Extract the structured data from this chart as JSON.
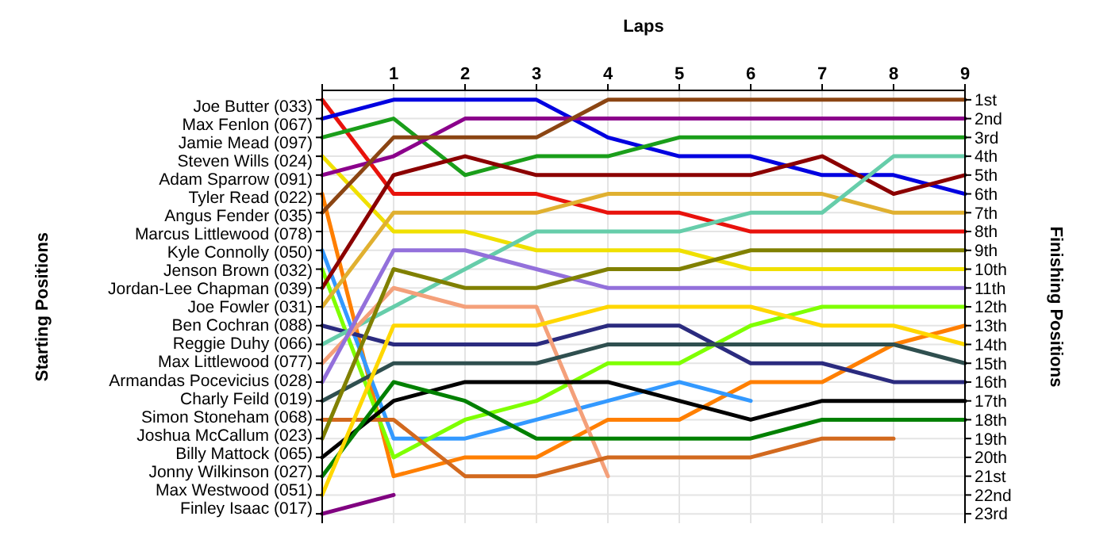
{
  "chart_data": {
    "type": "line",
    "xlabel": "Laps",
    "ylabel": "Finishing Positions",
    "x": [
      0,
      1,
      2,
      3,
      4,
      5,
      6,
      7,
      8,
      9
    ],
    "xlim": [
      0,
      9
    ],
    "xticks": [
      {
        "value": 0,
        "label": null
      },
      1,
      2,
      3,
      4,
      5,
      6,
      7,
      8,
      9
    ],
    "ylim": [
      23.5,
      0.5
    ],
    "annotations": [
      "Starting Positions",
      "Joe Butter (033)",
      "Max Fenlon (067)",
      "Jamie Mead (097)",
      "Steven Wills (024)",
      "Adam Sparrow (091)",
      "Tyler Read (022)",
      "Angus Fender (035)",
      "Marcus Littlewood (078)",
      "Kyle Connolly (050)",
      "Jenson Brown (032)",
      "Jordan-Lee Chapman (039)",
      "Joe Fowler (031)",
      "Ben Cochran (088)",
      "Reggie Duhy (066)",
      "Max Littlewood (077)",
      "Armandas Pocevicius (028)",
      "Charly Feild (019)",
      "Simon Stoneham (068)",
      "Joshua McCallum (023)",
      "Billy Mattock (065)",
      "Jonny Wilkinson (027)",
      "Max Westwood (051)",
      "Finley Isaac (017)"
    ],
    "yticks": [
      {
        "value": 1,
        "label": "1st"
      },
      {
        "value": 2,
        "label": "2nd"
      },
      {
        "value": 3,
        "label": "3rd"
      },
      {
        "value": 4,
        "label": "4th"
      },
      {
        "value": 5,
        "label": "5th"
      },
      {
        "value": 6,
        "label": "6th"
      },
      {
        "value": 7,
        "label": "7th"
      },
      {
        "value": 8,
        "label": "8th"
      },
      {
        "value": 9,
        "label": "9th"
      },
      {
        "value": 10,
        "label": "10th"
      },
      {
        "value": 11,
        "label": "11th"
      },
      {
        "value": 12,
        "label": "12th"
      },
      {
        "value": 13,
        "label": "13th"
      },
      {
        "value": 14,
        "label": "14th"
      },
      {
        "value": 15,
        "label": "15th"
      },
      {
        "value": 16,
        "label": "16th"
      },
      {
        "value": 17,
        "label": "17th"
      },
      {
        "value": 18,
        "label": "18th"
      },
      {
        "value": 19,
        "label": "19th"
      },
      {
        "value": 20,
        "label": "20th"
      },
      {
        "value": 21,
        "label": "21st"
      },
      {
        "value": 22,
        "label": "22nd"
      },
      {
        "value": 23,
        "label": "23rd"
      }
    ],
    "grid": true,
    "line_style": "solid",
    "marker": "none",
    "series": [
      {
        "color": "#e8120c",
        "values": [
          1,
          6,
          6,
          6,
          7,
          7,
          8,
          8,
          8,
          8
        ]
      },
      {
        "color": "#0000e0",
        "values": [
          2,
          1,
          1,
          1,
          3,
          4,
          4,
          5,
          5,
          6
        ]
      },
      {
        "color": "#1a9e1a",
        "values": [
          3,
          2,
          5,
          4,
          4,
          3,
          3,
          3,
          3,
          3
        ]
      },
      {
        "color": "#f0e000",
        "values": [
          4,
          8,
          8,
          9,
          9,
          9,
          10,
          10,
          10,
          10
        ]
      },
      {
        "color": "#8b008b",
        "values": [
          5,
          4,
          2,
          2,
          2,
          2,
          2,
          2,
          2,
          2
        ]
      },
      {
        "color": "#ff7f00",
        "values": [
          6,
          21,
          20,
          20,
          18,
          18,
          16,
          16,
          14,
          13
        ]
      },
      {
        "color": "#8b4513",
        "values": [
          7,
          3,
          3,
          3,
          1,
          1,
          1,
          1,
          1,
          1
        ]
      },
      {
        "color": "#3399ff",
        "values": [
          9,
          19,
          19,
          18,
          17,
          16,
          17,
          null,
          null,
          null
        ]
      },
      {
        "color": "#7fff00",
        "values": [
          10,
          20,
          18,
          17,
          15,
          15,
          13,
          12,
          12,
          12
        ]
      },
      {
        "color": "#8b0000",
        "values": [
          11,
          5,
          4,
          5,
          5,
          5,
          5,
          4,
          6,
          5
        ]
      },
      {
        "color": "#e0b030",
        "values": [
          12,
          7,
          7,
          7,
          6,
          6,
          6,
          6,
          7,
          7
        ]
      },
      {
        "color": "#2b2b7f",
        "values": [
          13,
          14,
          14,
          14,
          13,
          13,
          15,
          15,
          16,
          16
        ]
      },
      {
        "color": "#66cdaa",
        "values": [
          14,
          12,
          10,
          8,
          8,
          8,
          7,
          7,
          4,
          4
        ]
      },
      {
        "color": "#f4a07a",
        "values": [
          15,
          11,
          12,
          12,
          21,
          null,
          null,
          null,
          null,
          null
        ]
      },
      {
        "color": "#9370db",
        "values": [
          16,
          9,
          9,
          10,
          11,
          11,
          11,
          11,
          11,
          11
        ]
      },
      {
        "color": "#2f4f4f",
        "values": [
          17,
          15,
          15,
          15,
          14,
          14,
          14,
          14,
          14,
          15
        ]
      },
      {
        "color": "#d2691e",
        "values": [
          18,
          18,
          21,
          21,
          20,
          20,
          20,
          19,
          19,
          null
        ]
      },
      {
        "color": "#808000",
        "values": [
          19,
          10,
          11,
          11,
          10,
          10,
          9,
          9,
          9,
          9
        ]
      },
      {
        "color": "#000000",
        "values": [
          20,
          17,
          16,
          16,
          16,
          17,
          18,
          17,
          17,
          17
        ]
      },
      {
        "color": "#008000",
        "values": [
          21,
          16,
          17,
          19,
          19,
          19,
          19,
          18,
          18,
          18
        ]
      },
      {
        "color": "#ffd700",
        "values": [
          22,
          13,
          13,
          13,
          12,
          12,
          12,
          13,
          13,
          14
        ]
      },
      {
        "color": "#800080",
        "values": [
          23,
          22,
          null,
          null,
          null,
          null,
          null,
          null,
          null,
          null
        ]
      }
    ]
  }
}
